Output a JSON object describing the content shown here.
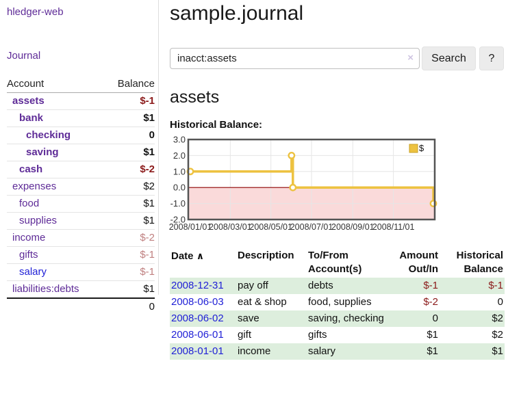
{
  "brand": "hledger-web",
  "nav": {
    "journal": "Journal"
  },
  "sidebar": {
    "header": {
      "account": "Account",
      "balance": "Balance"
    },
    "accounts": [
      {
        "name": "assets",
        "balance": "$-1"
      },
      {
        "name": "bank",
        "balance": "$1"
      },
      {
        "name": "checking",
        "balance": "0"
      },
      {
        "name": "saving",
        "balance": "$1"
      },
      {
        "name": "cash",
        "balance": "$-2"
      },
      {
        "name": "expenses",
        "balance": "$2"
      },
      {
        "name": "food",
        "balance": "$1"
      },
      {
        "name": "supplies",
        "balance": "$1"
      },
      {
        "name": "income",
        "balance": "$-2"
      },
      {
        "name": "gifts",
        "balance": "$-1"
      },
      {
        "name": "salary",
        "balance": "$-1"
      },
      {
        "name": "liabilities:debts",
        "balance": "$1"
      }
    ],
    "total": "0"
  },
  "page": {
    "title": "sample.journal",
    "account_title": "assets",
    "chart_heading": "Historical Balance:"
  },
  "search": {
    "value": "inacct:assets",
    "clear_icon": "×",
    "button_label": "Search",
    "help_label": "?"
  },
  "register": {
    "sort_indicator": "∧",
    "columns": {
      "date": "Date",
      "description": "Description",
      "accounts_line1": "To/From",
      "accounts_line2": "Account(s)",
      "amount_line1": "Amount",
      "amount_line2": "Out/In",
      "balance_line1": "Historical",
      "balance_line2": "Balance"
    },
    "rows": [
      {
        "date": "2008-12-31",
        "description": "pay off",
        "accounts": "debts",
        "amount": "$-1",
        "balance": "$-1"
      },
      {
        "date": "2008-06-03",
        "description": "eat & shop",
        "accounts": "food, supplies",
        "amount": "$-2",
        "balance": "0"
      },
      {
        "date": "2008-06-02",
        "description": "save",
        "accounts": "saving, checking",
        "amount": "0",
        "balance": "$2"
      },
      {
        "date": "2008-06-01",
        "description": "gift",
        "accounts": "gifts",
        "amount": "$1",
        "balance": "$2"
      },
      {
        "date": "2008-01-01",
        "description": "income",
        "accounts": "salary",
        "amount": "$1",
        "balance": "$1"
      }
    ]
  },
  "chart_data": {
    "type": "line",
    "title": "Historical Balance:",
    "step": true,
    "xrange": [
      "2008/01/01",
      "2008/12/31"
    ],
    "xticks": [
      "2008/01/01",
      "2008/03/01",
      "2008/05/01",
      "2008/07/01",
      "2008/09/01",
      "2008/11/01"
    ],
    "yticks": [
      3,
      2,
      1,
      0,
      -1,
      -2
    ],
    "ylim": [
      -2,
      3
    ],
    "grid": true,
    "legend_position": "top-right",
    "series": [
      {
        "name": "$",
        "color": "#edc240",
        "points": [
          {
            "date": "2008/01/01",
            "value": 1
          },
          {
            "date": "2008/06/01",
            "value": 2
          },
          {
            "date": "2008/06/03",
            "value": 0
          },
          {
            "date": "2008/12/31",
            "value": -1
          }
        ]
      }
    ],
    "negative_region_color": "#fadada",
    "zero_line_color": "#8b0000"
  },
  "colors": {
    "link_purple": "#5e2b97",
    "link_blue": "#1f1fd6",
    "negative_strong": "#8b1a1a",
    "negative_muted": "#bf7f7f",
    "row_stripe_green": "#ddeedd",
    "series_yellow": "#edc240",
    "chart_negative_region": "#fadada",
    "chart_zero_line": "#8b0000"
  }
}
